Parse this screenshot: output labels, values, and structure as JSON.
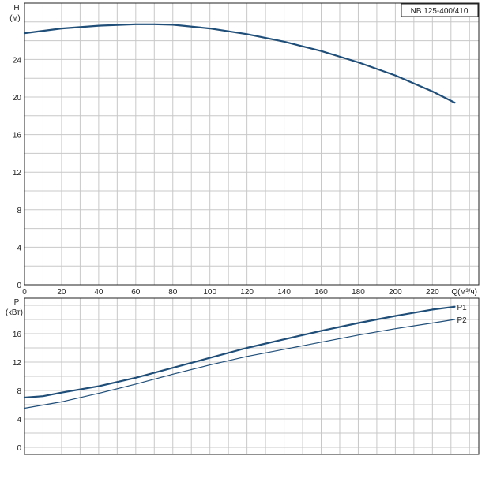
{
  "chart_data": [
    {
      "type": "line",
      "title": "NB 125-400/410",
      "ylabel": "H",
      "yunit": "(м)",
      "xlabel": "Q(м³/ч)",
      "xlim": [
        0,
        245
      ],
      "ylim": [
        0,
        30
      ],
      "x_ticks": [
        "0",
        "20",
        "40",
        "60",
        "80",
        "100",
        "120",
        "140",
        "160",
        "180",
        "200",
        "220"
      ],
      "y_ticks": [
        "0",
        "4",
        "8",
        "12",
        "16",
        "20",
        "24"
      ],
      "grid": true,
      "series": [
        {
          "name": "",
          "color": "#1f4e79",
          "x": [
            0,
            20,
            40,
            60,
            70,
            80,
            100,
            120,
            140,
            160,
            180,
            200,
            220,
            232
          ],
          "y": [
            26.8,
            27.3,
            27.6,
            27.75,
            27.75,
            27.7,
            27.3,
            26.7,
            25.9,
            24.9,
            23.7,
            22.3,
            20.6,
            19.4
          ]
        }
      ]
    },
    {
      "type": "line",
      "ylabel": "P",
      "yunit": "(кВт)",
      "xlim": [
        0,
        245
      ],
      "ylim": [
        -1,
        21
      ],
      "y_ticks": [
        "0",
        "4",
        "8",
        "12",
        "16"
      ],
      "grid": true,
      "series": [
        {
          "name": "P1",
          "color": "#1f4e79",
          "x": [
            0,
            10,
            20,
            40,
            60,
            80,
            100,
            120,
            140,
            160,
            180,
            200,
            220,
            232
          ],
          "y": [
            7.0,
            7.2,
            7.7,
            8.6,
            9.8,
            11.2,
            12.6,
            14.0,
            15.2,
            16.4,
            17.5,
            18.5,
            19.4,
            19.8
          ]
        },
        {
          "name": "P2",
          "color": "#1f4e79",
          "x": [
            0,
            20,
            40,
            60,
            80,
            100,
            120,
            140,
            160,
            180,
            200,
            220,
            232
          ],
          "y": [
            5.5,
            6.4,
            7.6,
            8.9,
            10.3,
            11.6,
            12.8,
            13.8,
            14.8,
            15.8,
            16.7,
            17.5,
            18.0
          ]
        }
      ]
    }
  ]
}
